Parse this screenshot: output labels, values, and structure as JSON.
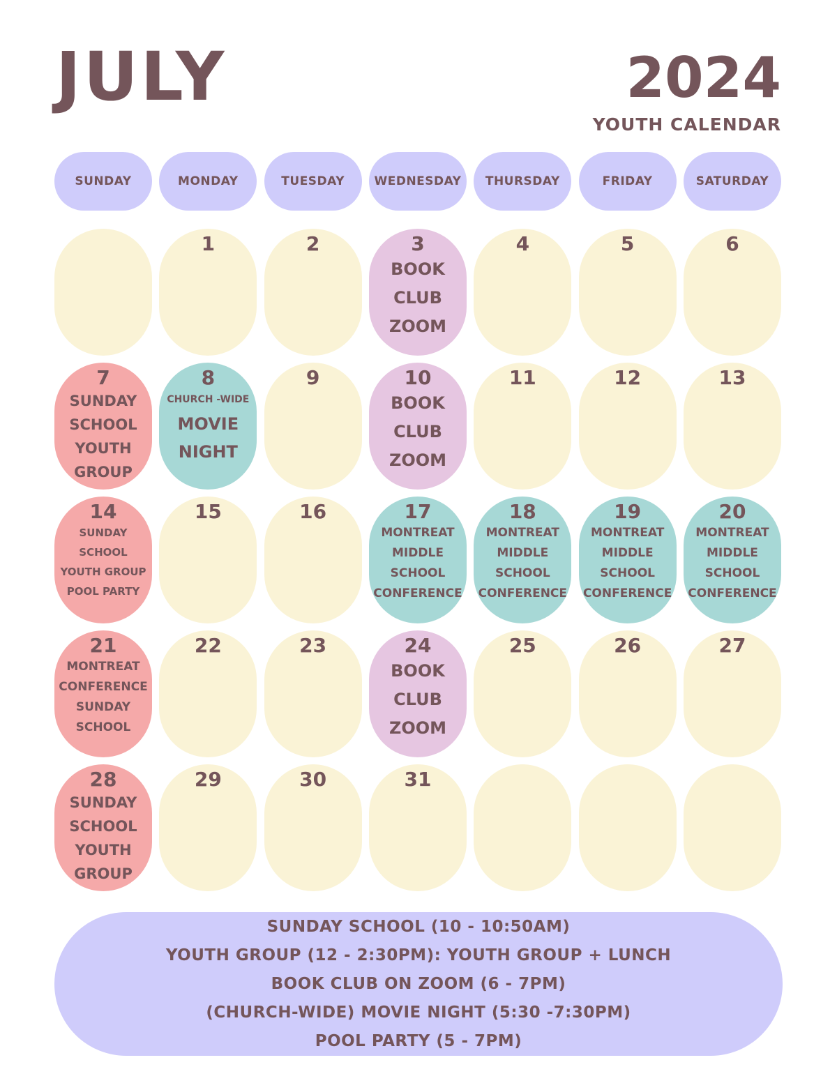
{
  "header": {
    "month": "JULY",
    "year": "2024",
    "subtitle": "YOUTH CALENDAR"
  },
  "weekdays": [
    "SUNDAY",
    "MONDAY",
    "TUESDAY",
    "WEDNESDAY",
    "THURSDAY",
    "FRIDAY",
    "SATURDAY"
  ],
  "colors": {
    "text": "#74555a",
    "weekday_pill": "#cfccfb",
    "empty_day": "#faf3d6",
    "sunday_event": "#f5a9a9",
    "special_event": "#a7d8d6",
    "book_club": "#e6c6e1",
    "legend_bg": "#cfccfb"
  },
  "weeks": [
    [
      {
        "day": "",
        "color": "empty",
        "style": "",
        "events": []
      },
      {
        "day": "1",
        "color": "empty",
        "style": "",
        "events": []
      },
      {
        "day": "2",
        "color": "empty",
        "style": "",
        "events": []
      },
      {
        "day": "3",
        "color": "lavender",
        "style": "big",
        "events": [
          "BOOK",
          "CLUB",
          "ZOOM"
        ]
      },
      {
        "day": "4",
        "color": "empty",
        "style": "",
        "events": []
      },
      {
        "day": "5",
        "color": "empty",
        "style": "",
        "events": []
      },
      {
        "day": "6",
        "color": "empty",
        "style": "",
        "events": []
      }
    ],
    [
      {
        "day": "7",
        "color": "pink",
        "style": "md",
        "events": [
          "SUNDAY",
          "SCHOOL",
          "YOUTH",
          "GROUP"
        ]
      },
      {
        "day": "8",
        "color": "teal",
        "style": "mix",
        "events": [
          "CHURCH -WIDE",
          "MOVIE",
          "NIGHT"
        ]
      },
      {
        "day": "9",
        "color": "empty",
        "style": "",
        "events": []
      },
      {
        "day": "10",
        "color": "lavender",
        "style": "big",
        "events": [
          "BOOK",
          "CLUB",
          "ZOOM"
        ]
      },
      {
        "day": "11",
        "color": "empty",
        "style": "",
        "events": []
      },
      {
        "day": "12",
        "color": "empty",
        "style": "",
        "events": []
      },
      {
        "day": "13",
        "color": "empty",
        "style": "",
        "events": []
      }
    ],
    [
      {
        "day": "14",
        "color": "pink",
        "style": "xs",
        "events": [
          "SUNDAY",
          "SCHOOL",
          "YOUTH GROUP",
          "POOL PARTY"
        ]
      },
      {
        "day": "15",
        "color": "empty",
        "style": "",
        "events": []
      },
      {
        "day": "16",
        "color": "empty",
        "style": "",
        "events": []
      },
      {
        "day": "17",
        "color": "teal",
        "style": "sm",
        "events": [
          "MONTREAT",
          "MIDDLE",
          "SCHOOL",
          "CONFERENCE"
        ]
      },
      {
        "day": "18",
        "color": "teal",
        "style": "sm",
        "events": [
          "MONTREAT",
          "MIDDLE",
          "SCHOOL",
          "CONFERENCE"
        ]
      },
      {
        "day": "19",
        "color": "teal",
        "style": "sm",
        "events": [
          "MONTREAT",
          "MIDDLE",
          "SCHOOL",
          "CONFERENCE"
        ]
      },
      {
        "day": "20",
        "color": "teal",
        "style": "sm",
        "events": [
          "MONTREAT",
          "MIDDLE",
          "SCHOOL",
          "CONFERENCE"
        ]
      }
    ],
    [
      {
        "day": "21",
        "color": "pink",
        "style": "sm",
        "events": [
          "MONTREAT",
          "CONFERENCE",
          "SUNDAY",
          "SCHOOL"
        ]
      },
      {
        "day": "22",
        "color": "empty",
        "style": "",
        "events": []
      },
      {
        "day": "23",
        "color": "empty",
        "style": "",
        "events": []
      },
      {
        "day": "24",
        "color": "lavender",
        "style": "big",
        "events": [
          "BOOK",
          "CLUB",
          "ZOOM"
        ]
      },
      {
        "day": "25",
        "color": "empty",
        "style": "",
        "events": []
      },
      {
        "day": "26",
        "color": "empty",
        "style": "",
        "events": []
      },
      {
        "day": "27",
        "color": "empty",
        "style": "",
        "events": []
      }
    ],
    [
      {
        "day": "28",
        "color": "pink",
        "style": "md",
        "events": [
          "SUNDAY",
          "SCHOOL",
          "YOUTH",
          "GROUP"
        ]
      },
      {
        "day": "29",
        "color": "empty",
        "style": "",
        "events": []
      },
      {
        "day": "30",
        "color": "empty",
        "style": "",
        "events": []
      },
      {
        "day": "31",
        "color": "empty",
        "style": "",
        "events": []
      },
      {
        "day": "",
        "color": "empty",
        "style": "",
        "events": []
      },
      {
        "day": "",
        "color": "empty",
        "style": "",
        "events": []
      },
      {
        "day": "",
        "color": "empty",
        "style": "",
        "events": []
      }
    ]
  ],
  "legend": [
    "SUNDAY SCHOOL (10 - 10:50AM)",
    "YOUTH GROUP (12 - 2:30PM): YOUTH GROUP + LUNCH",
    "BOOK CLUB ON ZOOM (6 - 7PM)",
    "(CHURCH-WIDE) MOVIE NIGHT (5:30 -7:30PM)",
    "POOL PARTY (5 - 7PM)"
  ]
}
